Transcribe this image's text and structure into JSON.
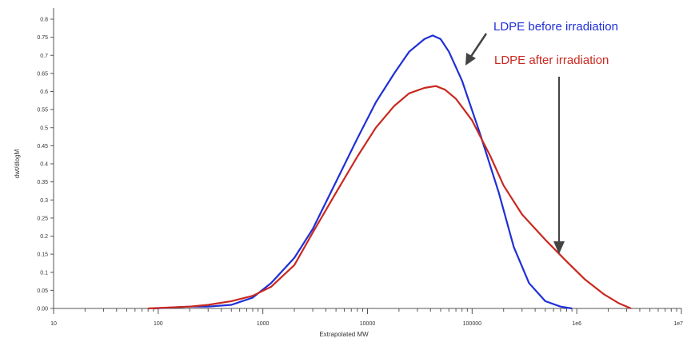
{
  "chart_data": {
    "type": "line",
    "xscale": "log",
    "xlabel": "Extrapolated MW",
    "ylabel": "dwt/dlogM",
    "xlim": [
      10,
      10000000
    ],
    "ylim": [
      0,
      0.82
    ],
    "grid": false,
    "x_tick_labels": [
      "10",
      "100",
      "1000",
      "10000",
      "100000",
      "1e6",
      "1e7"
    ],
    "x_tick_values": [
      10,
      100,
      1000,
      10000,
      100000,
      1000000,
      10000000
    ],
    "y_tick_labels": [
      "0.00",
      "0.05",
      "0.1",
      "0.15",
      "0.2",
      "0.25",
      "0.3",
      "0.35",
      "0.4",
      "0.45",
      "0.5",
      "0.55",
      "0.6",
      "0.65",
      "0.7",
      "0.75",
      "0.8"
    ],
    "y_tick_values": [
      0,
      0.05,
      0.1,
      0.15,
      0.2,
      0.25,
      0.3,
      0.35,
      0.4,
      0.45,
      0.5,
      0.55,
      0.6,
      0.65,
      0.7,
      0.75,
      0.8
    ],
    "series": [
      {
        "name": "LDPE before irradiation",
        "color": "#1f2fd6",
        "x": [
          90,
          200,
          300,
          500,
          800,
          1200,
          2000,
          3000,
          5000,
          8000,
          12000,
          18000,
          25000,
          35000,
          42000,
          50000,
          60000,
          80000,
          120000,
          180000,
          250000,
          350000,
          500000,
          700000,
          900000
        ],
        "y": [
          0.0,
          0.005,
          0.005,
          0.01,
          0.03,
          0.07,
          0.14,
          0.22,
          0.35,
          0.47,
          0.57,
          0.65,
          0.71,
          0.745,
          0.755,
          0.745,
          0.71,
          0.63,
          0.48,
          0.32,
          0.17,
          0.07,
          0.02,
          0.005,
          0.0
        ]
      },
      {
        "name": "LDPE after irradiation",
        "color": "#c9281f",
        "x": [
          80,
          200,
          300,
          500,
          800,
          1200,
          2000,
          3000,
          5000,
          8000,
          12000,
          18000,
          25000,
          35000,
          45000,
          55000,
          70000,
          100000,
          150000,
          200000,
          300000,
          500000,
          800000,
          1200000,
          1800000,
          2500000,
          3300000
        ],
        "y": [
          0.0,
          0.005,
          0.01,
          0.02,
          0.035,
          0.06,
          0.12,
          0.21,
          0.32,
          0.42,
          0.5,
          0.56,
          0.595,
          0.61,
          0.615,
          0.605,
          0.58,
          0.52,
          0.42,
          0.34,
          0.26,
          0.19,
          0.13,
          0.08,
          0.04,
          0.015,
          0.0
        ]
      }
    ],
    "annotations": [
      {
        "text": "LDPE before irradiation",
        "color": "#1f2fd6"
      },
      {
        "text": "LDPE after irradiation",
        "color": "#c9281f"
      }
    ]
  }
}
